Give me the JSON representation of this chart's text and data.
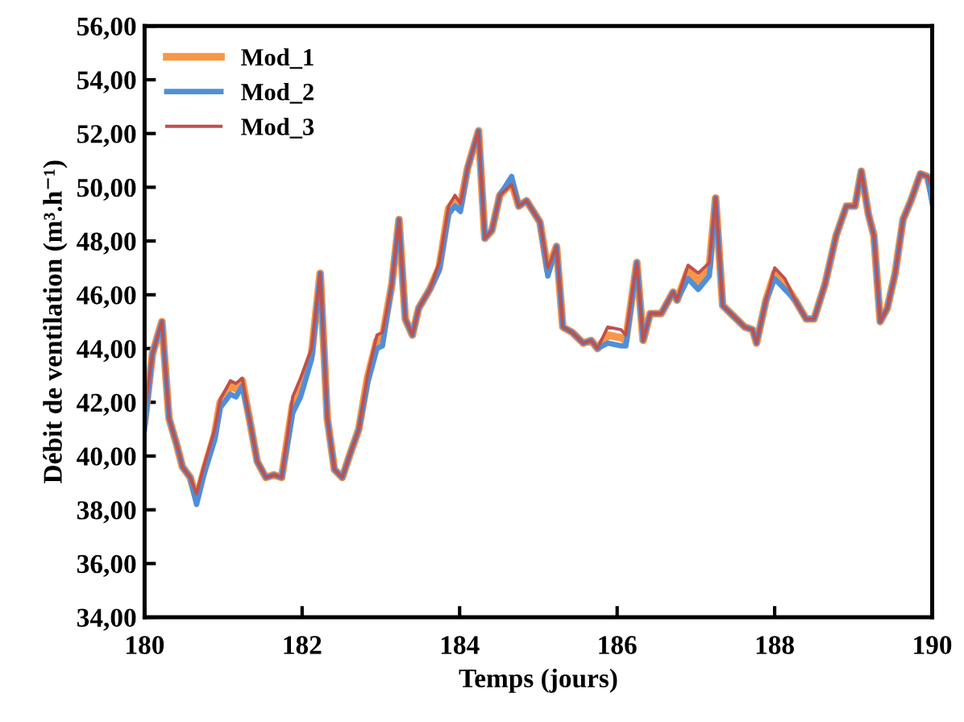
{
  "chart_data": {
    "type": "line",
    "xlabel": "Temps (jours)",
    "ylabel": "Débit de ventilation (m³.h⁻¹)",
    "x": [
      180.0,
      180.1,
      180.22,
      180.31,
      180.41,
      180.48,
      180.58,
      180.66,
      180.75,
      180.89,
      180.96,
      181.09,
      181.16,
      181.24,
      181.33,
      181.43,
      181.54,
      181.64,
      181.74,
      181.88,
      181.98,
      182.12,
      182.23,
      182.32,
      182.41,
      182.51,
      182.6,
      182.72,
      182.83,
      182.95,
      183.02,
      183.14,
      183.23,
      183.31,
      183.4,
      183.48,
      183.62,
      183.74,
      183.86,
      183.94,
      184.01,
      184.1,
      184.24,
      184.32,
      184.41,
      184.51,
      184.66,
      184.75,
      184.85,
      185.02,
      185.12,
      185.23,
      185.31,
      185.43,
      185.57,
      185.67,
      185.75,
      185.88,
      186.05,
      186.11,
      186.25,
      186.33,
      186.42,
      186.56,
      186.71,
      186.76,
      186.9,
      187.03,
      187.17,
      187.25,
      187.34,
      187.48,
      187.62,
      187.72,
      187.77,
      187.89,
      188.0,
      188.13,
      188.26,
      188.4,
      188.5,
      188.64,
      188.78,
      188.91,
      189.02,
      189.1,
      189.19,
      189.26,
      189.34,
      189.43,
      189.53,
      189.63,
      189.73,
      189.85,
      189.94,
      190.0
    ],
    "series": [
      {
        "name": "Mod_1",
        "color": "#f79646",
        "values": [
          41.3,
          43.8,
          45.0,
          41.4,
          40.4,
          39.6,
          39.2,
          38.4,
          39.4,
          40.8,
          42.0,
          42.6,
          42.5,
          42.8,
          41.4,
          39.8,
          39.2,
          39.3,
          39.2,
          41.9,
          42.6,
          43.8,
          46.8,
          41.4,
          39.5,
          39.2,
          40.0,
          41.0,
          42.9,
          44.3,
          44.4,
          46.4,
          48.8,
          45.1,
          44.5,
          45.5,
          46.2,
          47.0,
          49.2,
          49.5,
          49.3,
          50.7,
          52.1,
          48.1,
          48.4,
          49.7,
          50.2,
          49.3,
          49.5,
          48.7,
          46.9,
          47.8,
          44.8,
          44.6,
          44.2,
          44.3,
          44.0,
          44.5,
          44.4,
          44.3,
          47.2,
          44.3,
          45.3,
          45.3,
          46.1,
          45.8,
          46.9,
          46.5,
          47.0,
          49.6,
          45.6,
          45.2,
          44.8,
          44.7,
          44.2,
          45.8,
          46.8,
          46.4,
          45.8,
          45.1,
          45.1,
          46.4,
          48.2,
          49.3,
          49.3,
          50.6,
          49.0,
          48.2,
          45.0,
          45.5,
          46.8,
          48.8,
          49.5,
          50.5,
          50.4,
          49.7
        ]
      },
      {
        "name": "Mod_2",
        "color": "#4f8fd8",
        "values": [
          41.0,
          43.8,
          45.0,
          41.4,
          40.4,
          39.6,
          39.2,
          38.2,
          39.3,
          40.6,
          41.8,
          42.3,
          42.2,
          42.6,
          41.4,
          39.8,
          39.2,
          39.3,
          39.2,
          41.6,
          42.2,
          43.6,
          46.8,
          41.4,
          39.5,
          39.2,
          40.0,
          41.0,
          42.7,
          44.0,
          44.1,
          46.4,
          48.8,
          45.1,
          44.5,
          45.5,
          46.2,
          46.9,
          49.0,
          49.3,
          49.1,
          50.7,
          52.1,
          48.1,
          48.4,
          49.7,
          50.4,
          49.3,
          49.5,
          48.7,
          46.7,
          47.8,
          44.8,
          44.6,
          44.2,
          44.3,
          44.0,
          44.2,
          44.1,
          44.1,
          47.2,
          44.3,
          45.3,
          45.3,
          46.1,
          45.8,
          46.6,
          46.2,
          46.7,
          49.6,
          45.6,
          45.2,
          44.8,
          44.7,
          44.2,
          45.8,
          46.6,
          46.2,
          45.8,
          45.1,
          45.1,
          46.4,
          48.2,
          49.3,
          49.3,
          50.6,
          49.0,
          48.2,
          45.0,
          45.5,
          46.8,
          48.8,
          49.5,
          50.5,
          50.4,
          49.4
        ]
      },
      {
        "name": "Mod_3",
        "color": "#c0504d",
        "values": [
          41.6,
          43.8,
          45.0,
          41.4,
          40.4,
          39.6,
          39.2,
          38.6,
          39.6,
          41.0,
          42.1,
          42.8,
          42.7,
          42.9,
          41.4,
          39.8,
          39.2,
          39.3,
          39.2,
          42.2,
          42.9,
          44.0,
          46.8,
          41.4,
          39.5,
          39.2,
          40.0,
          41.0,
          43.0,
          44.5,
          44.6,
          46.4,
          48.8,
          45.1,
          44.5,
          45.5,
          46.2,
          47.2,
          49.3,
          49.7,
          49.4,
          50.7,
          52.1,
          48.1,
          48.4,
          49.7,
          50.1,
          49.3,
          49.5,
          48.7,
          47.0,
          47.8,
          44.8,
          44.6,
          44.2,
          44.3,
          44.0,
          44.8,
          44.7,
          44.5,
          47.2,
          44.3,
          45.3,
          45.3,
          46.1,
          45.8,
          47.1,
          46.8,
          47.2,
          49.6,
          45.6,
          45.2,
          44.8,
          44.7,
          44.2,
          45.8,
          47.0,
          46.6,
          45.8,
          45.1,
          45.1,
          46.4,
          48.2,
          49.3,
          49.3,
          50.6,
          49.0,
          48.2,
          45.0,
          45.5,
          46.8,
          48.8,
          49.5,
          50.5,
          50.4,
          50.0
        ]
      }
    ],
    "xlim": [
      180,
      190
    ],
    "xticks": [
      180,
      182,
      184,
      186,
      188,
      190
    ],
    "ylim": [
      34,
      56
    ],
    "yticks": [
      {
        "value": 34,
        "label": "34,00"
      },
      {
        "value": 36,
        "label": "36,00"
      },
      {
        "value": 38,
        "label": "38,00"
      },
      {
        "value": 40,
        "label": "40,00"
      },
      {
        "value": 42,
        "label": "42,00"
      },
      {
        "value": 44,
        "label": "44,00"
      },
      {
        "value": 46,
        "label": "46,00"
      },
      {
        "value": 48,
        "label": "48,00"
      },
      {
        "value": 50,
        "label": "50,00"
      },
      {
        "value": 52,
        "label": "52,00"
      },
      {
        "value": 54,
        "label": "54,00"
      },
      {
        "value": 56,
        "label": "56,00"
      }
    ],
    "legend": "top left",
    "grid": false,
    "marker": "none",
    "line_style": "solid"
  }
}
